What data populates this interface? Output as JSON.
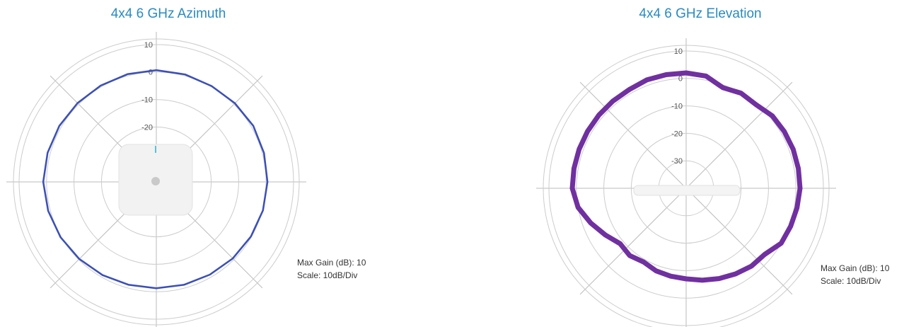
{
  "chart_data": [
    {
      "type": "polar",
      "title": "4x4 6 GHz Azimuth",
      "theta": [
        0,
        15,
        30,
        45,
        60,
        75,
        90,
        105,
        120,
        135,
        150,
        165,
        180,
        195,
        210,
        225,
        240,
        255,
        270,
        285,
        300,
        315,
        330,
        345
      ],
      "values": [
        0.7,
        0.5,
        0.3,
        0.5,
        0.8,
        0.6,
        0.5,
        0.2,
        -0.2,
        -0.6,
        -1,
        -1.2,
        -1.3,
        -1.2,
        -0.8,
        -0.3,
        0.3,
        0.8,
        1.2,
        1,
        0.8,
        0.6,
        0.5,
        0.6
      ],
      "color": "#3b4fb5",
      "rlim": [
        -40,
        10
      ],
      "rticks": [
        10,
        0,
        -10,
        -20
      ],
      "annotations": [
        "Max Gain (dB): 10",
        "Scale: 10dB/Div"
      ]
    },
    {
      "type": "polar",
      "title": "4x4 6 GHz Elevation",
      "theta": [
        0,
        10,
        20,
        30,
        40,
        50,
        60,
        70,
        80,
        90,
        100,
        110,
        120,
        130,
        140,
        150,
        160,
        170,
        180,
        190,
        200,
        210,
        220,
        230,
        240,
        250,
        260,
        270,
        280,
        290,
        300,
        310,
        320,
        330,
        340,
        350
      ],
      "values": [
        2,
        1.5,
        -1,
        0,
        -0.3,
        1,
        1.3,
        1.5,
        1.5,
        1.5,
        1,
        0.5,
        0,
        -2.6,
        -3,
        -4,
        -5,
        -6,
        -7,
        -7.5,
        -8,
        -9,
        -8,
        -8.6,
        -6,
        -3,
        0,
        1.5,
        1.5,
        1.5,
        1.5,
        1.5,
        1.5,
        1.5,
        2,
        2
      ],
      "color": "#7030a0",
      "rlim": [
        -40,
        10
      ],
      "rticks": [
        10,
        0,
        -10,
        -20,
        -30
      ],
      "annotations": [
        "Max Gain (dB): 10",
        "Scale: 10dB/Div"
      ]
    }
  ]
}
